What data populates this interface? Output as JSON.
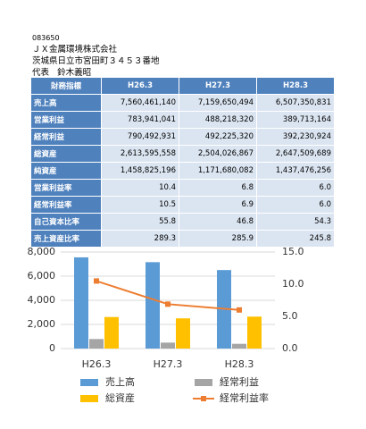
{
  "header": {
    "code": "083650",
    "company": "ＪＸ金属環境株式会社",
    "address": "茨城県日立市宮田町３４５３番地",
    "representative_label": "代表",
    "representative": "鈴木義昭"
  },
  "table": {
    "header": [
      "財務指標",
      "H26.3",
      "H27.3",
      "H28.3"
    ],
    "rows": [
      [
        "売上高",
        "7,560,461,140",
        "7,159,650,494",
        "6,507,350,831"
      ],
      [
        "営業利益",
        "783,941,041",
        "488,218,320",
        "389,713,164"
      ],
      [
        "経常利益",
        "790,492,931",
        "492,225,320",
        "392,230,924"
      ],
      [
        "総資産",
        "2,613,595,558",
        "2,504,026,867",
        "2,647,509,689"
      ],
      [
        "純資産",
        "1,458,825,196",
        "1,171,680,082",
        "1,437,476,256"
      ],
      [
        "営業利益率",
        "10.4",
        "6.8",
        "6.0"
      ],
      [
        "経常利益率",
        "10.5",
        "6.9",
        "6.0"
      ],
      [
        "自己資本比率",
        "55.8",
        "46.8",
        "54.3"
      ],
      [
        "売上資産比率",
        "289.3",
        "285.9",
        "245.8"
      ]
    ]
  },
  "chart_data": {
    "type": "bar",
    "categories": [
      "H26.3",
      "H27.3",
      "H28.3"
    ],
    "series": [
      {
        "name": "売上高",
        "color": "#5b9bd5",
        "values": [
          7560,
          7160,
          6507
        ]
      },
      {
        "name": "経常利益",
        "color": "#a5a5a5",
        "values": [
          790,
          492,
          392
        ]
      },
      {
        "name": "総資産",
        "color": "#ffc000",
        "values": [
          2614,
          2504,
          2648
        ]
      },
      {
        "name": "経常利益率",
        "color": "#ed7d31",
        "type": "line",
        "axis": "y2",
        "values": [
          10.5,
          6.9,
          6.0
        ]
      }
    ],
    "ylim": [
      0,
      8000
    ],
    "yticks": [
      0,
      {
        "value": 2000,
        "label": "2,000"
      },
      {
        "value": 4000,
        "label": "4,000"
      },
      {
        "value": 6000,
        "label": "6,000"
      },
      {
        "value": 8000,
        "label": "8,000"
      }
    ],
    "y2lim": [
      0,
      15
    ],
    "y2ticks": [
      {
        "value": 0,
        "label": "0.0"
      },
      {
        "value": 5,
        "label": "5.0"
      },
      {
        "value": 10,
        "label": "10.0"
      },
      {
        "value": 15,
        "label": "15.0"
      }
    ],
    "grid": true
  }
}
